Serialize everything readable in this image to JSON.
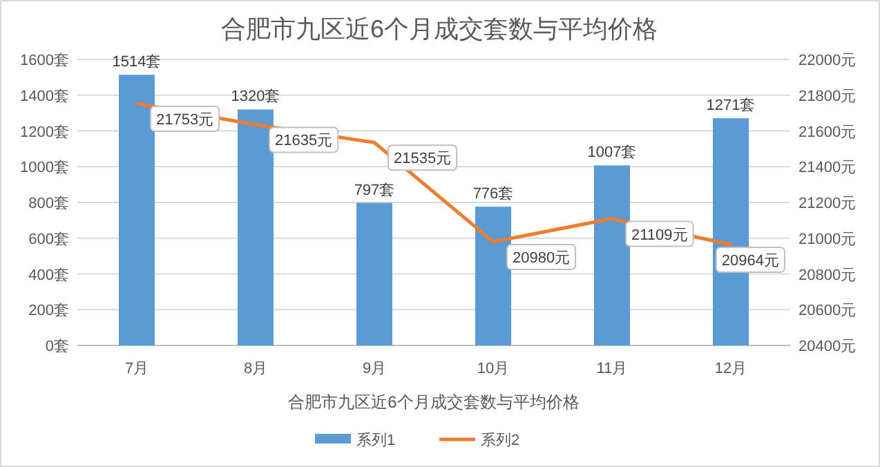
{
  "chart_data": {
    "type": "bar",
    "title": "合肥市九区近6个月成交套数与平均价格",
    "xlabel": "合肥市九区近6个月成交套数与平均价格",
    "categories": [
      "7月",
      "8月",
      "9月",
      "10月",
      "11月",
      "12月"
    ],
    "series": [
      {
        "name": "系列1",
        "color": "#5b9bd5",
        "values": [
          1514,
          1320,
          797,
          776,
          1007,
          1271
        ],
        "value_labels": [
          "1514套",
          "1320套",
          "797套",
          "776套",
          "1007套",
          "1271套"
        ]
      },
      {
        "name": "系列2",
        "type": "line",
        "axis": "y2",
        "color": "#ed7d31",
        "values": [
          21753,
          21635,
          21535,
          20980,
          21109,
          20964
        ],
        "value_labels": [
          "21753元",
          "21635元",
          "21535元",
          "20980元",
          "21109元",
          "20964元"
        ]
      }
    ],
    "ylim": [
      0,
      1600
    ],
    "yticks": [
      {
        "value": 0,
        "label": "0套"
      },
      {
        "value": 200,
        "label": "200套"
      },
      {
        "value": 400,
        "label": "400套"
      },
      {
        "value": 600,
        "label": "600套"
      },
      {
        "value": 800,
        "label": "800套"
      },
      {
        "value": 1000,
        "label": "1000套"
      },
      {
        "value": 1200,
        "label": "1200套"
      },
      {
        "value": 1400,
        "label": "1400套"
      },
      {
        "value": 1600,
        "label": "1600套"
      }
    ],
    "y2lim": [
      20400,
      22000
    ],
    "y2ticks": [
      {
        "value": 20400,
        "label": "20400元"
      },
      {
        "value": 20600,
        "label": "20600元"
      },
      {
        "value": 20800,
        "label": "20800元"
      },
      {
        "value": 21000,
        "label": "21000元"
      },
      {
        "value": 21200,
        "label": "21200元"
      },
      {
        "value": 21400,
        "label": "21400元"
      },
      {
        "value": 21600,
        "label": "21600元"
      },
      {
        "value": 21800,
        "label": "21800元"
      },
      {
        "value": 22000,
        "label": "22000元"
      }
    ],
    "grid": "y",
    "legend": "bottom",
    "marker": "none",
    "line_style": "solid"
  }
}
